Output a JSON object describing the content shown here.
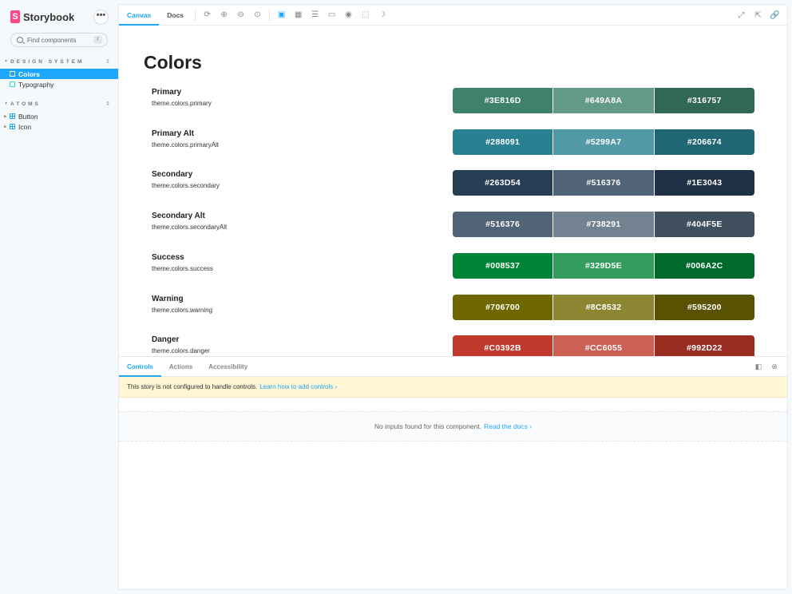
{
  "brand": {
    "logo_letter": "S",
    "name": "Storybook",
    "menu_glyph": "•••"
  },
  "search": {
    "placeholder": "Find components",
    "shortcut": "/"
  },
  "sidebar": {
    "sections": [
      {
        "label": "DESIGN SYSTEM",
        "items": [
          {
            "label": "Colors",
            "active": true
          },
          {
            "label": "Typography"
          }
        ]
      },
      {
        "label": "ATOMS",
        "items": [
          {
            "label": "Button"
          },
          {
            "label": "Icon"
          }
        ]
      }
    ]
  },
  "toolbar": {
    "tabs": [
      "Canvas",
      "Docs"
    ]
  },
  "page": {
    "title": "Colors"
  },
  "colors": [
    {
      "name": "Primary",
      "token": "theme.colors.primary",
      "swatches": [
        "#3E816D",
        "#649A8A",
        "#316757"
      ]
    },
    {
      "name": "Primary Alt",
      "token": "theme.colors.primaryAlt",
      "swatches": [
        "#288091",
        "#5299A7",
        "#206674"
      ]
    },
    {
      "name": "Secondary",
      "token": "theme.colors.secondary",
      "swatches": [
        "#263D54",
        "#516376",
        "#1E3043"
      ]
    },
    {
      "name": "Secondary Alt",
      "token": "theme.colors.secondaryAlt",
      "swatches": [
        "#516376",
        "#738291",
        "#404F5E"
      ]
    },
    {
      "name": "Success",
      "token": "theme.colors.success",
      "swatches": [
        "#008537",
        "#329D5E",
        "#006A2C"
      ]
    },
    {
      "name": "Warning",
      "token": "theme.colors.warning",
      "swatches": [
        "#706700",
        "#8C8532",
        "#595200"
      ]
    },
    {
      "name": "Danger",
      "token": "theme.colors.danger",
      "swatches": [
        "#C0392B",
        "#CC6055",
        "#992D22"
      ]
    }
  ],
  "addons": {
    "tabs": [
      "Controls",
      "Actions",
      "Accessibility"
    ],
    "warning_text": "This story is not configured to handle controls.",
    "warning_link": "Learn how to add controls",
    "empty_text": "No inputs found for this component.",
    "empty_link": "Read the docs"
  },
  "theme": {
    "accent": "#1ea7fd",
    "brand": "#ff4785"
  }
}
